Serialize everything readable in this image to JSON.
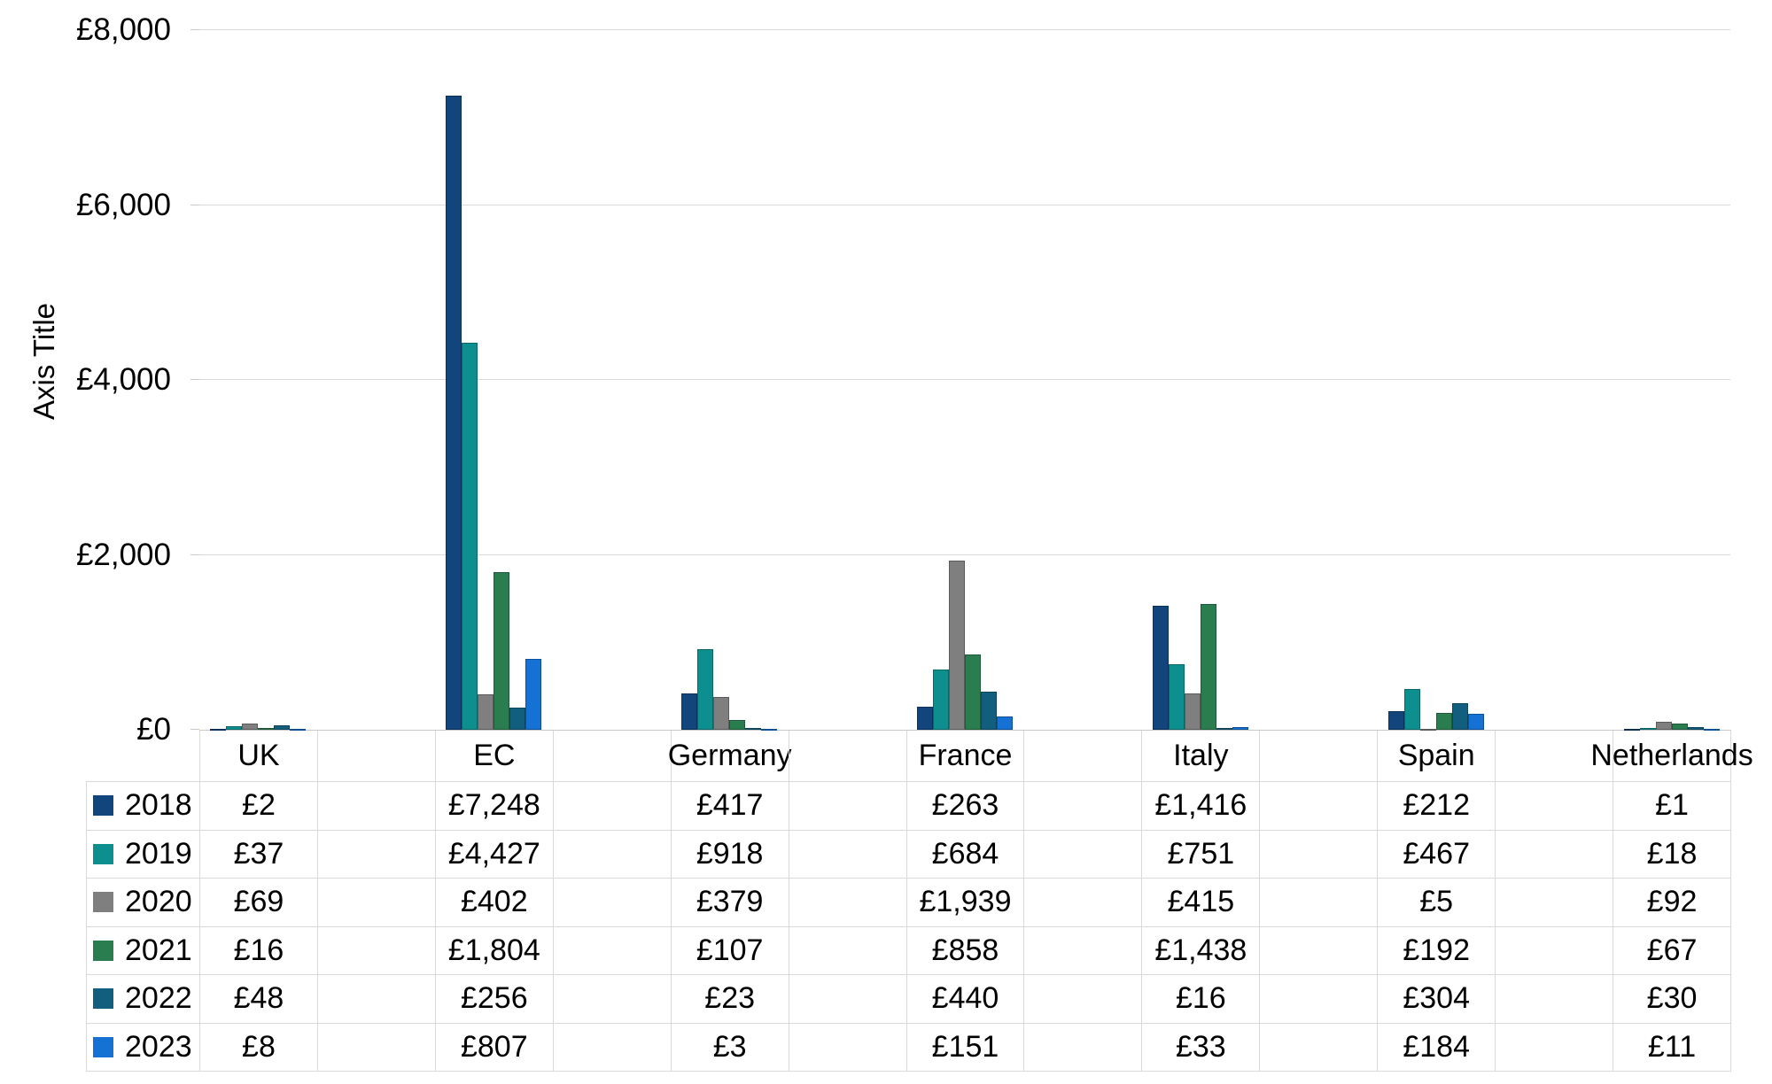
{
  "chart_data": {
    "type": "bar",
    "title": "",
    "xlabel": "",
    "ylabel": "Axis Title",
    "ylim": [
      0,
      8000
    ],
    "ytick_step": 2000,
    "yticks": [
      {
        "value": 0,
        "label": "£0"
      },
      {
        "value": 2000,
        "label": "£2,000"
      },
      {
        "value": 4000,
        "label": "£4,000"
      },
      {
        "value": 6000,
        "label": "£6,000"
      },
      {
        "value": 8000,
        "label": "£8,000"
      }
    ],
    "categories": [
      "UK",
      "EC",
      "Germany",
      "France",
      "Italy",
      "Spain",
      "Netherlands"
    ],
    "series": [
      {
        "name": "2018",
        "color": "#11457B",
        "values": [
          2,
          7248,
          417,
          263,
          1416,
          212,
          1
        ]
      },
      {
        "name": "2019",
        "color": "#0D8F8F",
        "values": [
          37,
          4427,
          918,
          684,
          751,
          467,
          18
        ]
      },
      {
        "name": "2020",
        "color": "#7F7F7F",
        "values": [
          69,
          402,
          379,
          1939,
          415,
          5,
          92
        ]
      },
      {
        "name": "2021",
        "color": "#2A7D4F",
        "values": [
          16,
          1804,
          107,
          858,
          1438,
          192,
          67
        ]
      },
      {
        "name": "2022",
        "color": "#125E7E",
        "values": [
          48,
          256,
          23,
          440,
          16,
          304,
          30
        ]
      },
      {
        "name": "2023",
        "color": "#1571D3",
        "values": [
          8,
          807,
          3,
          151,
          33,
          184,
          11
        ]
      }
    ],
    "currency_prefix": "£",
    "gridlines": true,
    "legend_position": "data-table-left",
    "spacer_categories": true
  },
  "colors": {
    "gridline": "#D9D9D9",
    "axis_line": "#C9C9C9",
    "table_border": "#D9D9D9",
    "bar_outline": "rgba(0,0,0,0.28)",
    "text": "#000000",
    "background": "#FFFFFF"
  }
}
